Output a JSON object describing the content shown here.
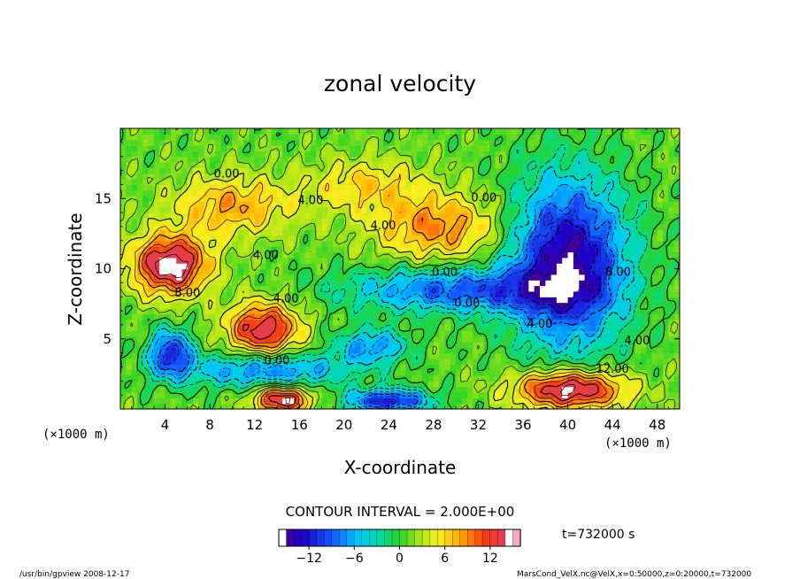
{
  "chart_data": {
    "type": "heatmap",
    "title": "zonal velocity",
    "xlabel": "X-coordinate",
    "ylabel": "Z-coordinate",
    "x_unit_left": "(×1000 m)",
    "x_unit_right": "(×1000 m)",
    "xlim": [
      0,
      50
    ],
    "ylim": [
      0,
      20
    ],
    "x_ticks": [
      4,
      8,
      12,
      16,
      20,
      24,
      28,
      32,
      36,
      40,
      44,
      48
    ],
    "y_ticks": [
      5,
      10,
      15
    ],
    "contour_interval_text": "CONTOUR INTERVAL = 2.000E+00",
    "time_text": "t=732000 s",
    "colorbar": {
      "min": -16,
      "max": 16,
      "ticks": [
        -12,
        -6,
        0,
        6,
        12
      ]
    },
    "contour_labels": [
      {
        "text": "8.00",
        "x": 6.0,
        "y": 8.0
      },
      {
        "text": "4.00",
        "x": 14.8,
        "y": 7.6
      },
      {
        "text": "0.00",
        "x": 14.0,
        "y": 3.2
      },
      {
        "text": "4.00",
        "x": 13.0,
        "y": 10.7
      },
      {
        "text": "4.00",
        "x": 17.0,
        "y": 14.6
      },
      {
        "text": "0.00",
        "x": 9.5,
        "y": 16.5
      },
      {
        "text": "4.00",
        "x": 23.5,
        "y": 12.8
      },
      {
        "text": "0.00",
        "x": 29.0,
        "y": 9.5
      },
      {
        "text": "0.00",
        "x": 31.0,
        "y": 7.3
      },
      {
        "text": "0.00",
        "x": 32.5,
        "y": 14.8
      },
      {
        "text": "4.00",
        "x": 37.5,
        "y": 5.8
      },
      {
        "text": "8.00",
        "x": 44.5,
        "y": 9.5
      },
      {
        "text": "4.00",
        "x": 46.2,
        "y": 4.6
      },
      {
        "text": "12.00",
        "x": 44.0,
        "y": 2.6
      }
    ],
    "features": [
      {
        "kind": "jet",
        "value": 15,
        "cx": 4.5,
        "cy": 10.3,
        "rx": 3.2,
        "ry": 2.0
      },
      {
        "kind": "jet",
        "value": 13,
        "cx": 12.8,
        "cy": 5.7,
        "rx": 3.0,
        "ry": 1.8
      },
      {
        "kind": "jet",
        "value": 15,
        "cx": 40.2,
        "cy": 1.4,
        "rx": 4.6,
        "ry": 1.3
      },
      {
        "kind": "jet",
        "value": 14,
        "cx": 14.5,
        "cy": 0.7,
        "rx": 2.4,
        "ry": 0.9
      },
      {
        "kind": "jet",
        "value": 8,
        "cx": 28.5,
        "cy": 13.0,
        "rx": 5.5,
        "ry": 2.2
      },
      {
        "kind": "jet",
        "value": 7,
        "cx": 10.0,
        "cy": 14.5,
        "rx": 5.0,
        "ry": 2.0
      },
      {
        "kind": "jet",
        "value": 5,
        "cx": 22.0,
        "cy": 16.0,
        "rx": 5.0,
        "ry": 1.8
      },
      {
        "kind": "vortex",
        "value": -16,
        "cx": 40.0,
        "cy": 10.5,
        "rx": 4.8,
        "ry": 5.5
      },
      {
        "kind": "vortex",
        "value": -10,
        "cx": 30.0,
        "cy": 8.5,
        "rx": 9.0,
        "ry": 1.5
      },
      {
        "kind": "vortex",
        "value": -9,
        "cx": 13.0,
        "cy": 2.8,
        "rx": 7.0,
        "ry": 1.2
      },
      {
        "kind": "vortex",
        "value": -12,
        "cx": 4.5,
        "cy": 4.0,
        "rx": 1.8,
        "ry": 1.6
      },
      {
        "kind": "vortex",
        "value": -13,
        "cx": 24.0,
        "cy": 0.6,
        "rx": 3.5,
        "ry": 0.8
      },
      {
        "kind": "vortex",
        "value": -8,
        "cx": 22.5,
        "cy": 4.5,
        "rx": 3.0,
        "ry": 1.2
      }
    ]
  },
  "footer": {
    "left": "/usr/bin/gpview   2008-12-17",
    "right": "MarsCond_VelX.nc@VelX,x=0:50000,z=0:20000,t=732000"
  }
}
